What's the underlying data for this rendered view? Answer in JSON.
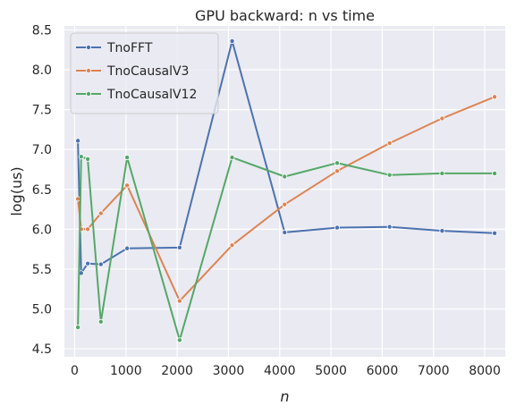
{
  "chart_data": {
    "type": "line",
    "title": "GPU backward: n vs time",
    "xlabel": "n",
    "ylabel": "log(us)",
    "xlim": [
      -200,
      8400
    ],
    "ylim": [
      4.4,
      8.55
    ],
    "xticks": [
      0,
      1000,
      2000,
      3000,
      4000,
      5000,
      6000,
      7000,
      8000
    ],
    "yticks": [
      4.5,
      5.0,
      5.5,
      6.0,
      6.5,
      7.0,
      7.5,
      8.0,
      8.5
    ],
    "xtick_labels": [
      "0",
      "1000",
      "2000",
      "3000",
      "4000",
      "5000",
      "6000",
      "7000",
      "8000"
    ],
    "ytick_labels": [
      "4.5",
      "5.0",
      "5.5",
      "6.0",
      "6.5",
      "7.0",
      "7.5",
      "8.0",
      "8.5"
    ],
    "grid": true,
    "legend_position": "top-left",
    "x": [
      64,
      128,
      256,
      512,
      1024,
      2048,
      3072,
      4096,
      5120,
      6144,
      7168,
      8192
    ],
    "series": [
      {
        "name": "TnoFFT",
        "color": "#4c72b0",
        "values": [
          7.11,
          5.45,
          5.57,
          5.56,
          5.76,
          5.77,
          8.36,
          5.96,
          6.02,
          6.03,
          5.98,
          5.95
        ]
      },
      {
        "name": "TnoCausalV3",
        "color": "#dd8452",
        "values": [
          6.38,
          6.0,
          6.0,
          6.2,
          6.55,
          5.1,
          5.8,
          6.31,
          6.73,
          7.08,
          7.39,
          7.66
        ]
      },
      {
        "name": "TnoCausalV12",
        "color": "#55a868",
        "values": [
          4.77,
          6.91,
          6.88,
          4.84,
          6.9,
          4.61,
          6.9,
          6.66,
          6.83,
          6.68,
          6.7,
          6.7
        ]
      }
    ]
  }
}
